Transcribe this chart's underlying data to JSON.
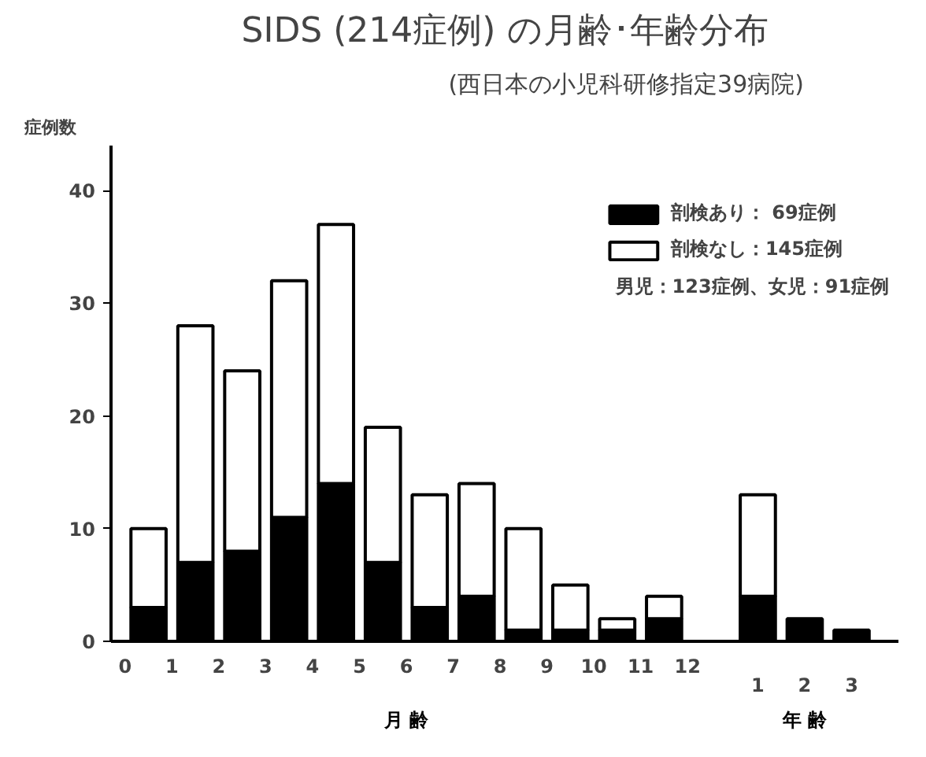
{
  "chart_data": {
    "type": "bar",
    "title": "SIDS (214症例) の月齢･年齢分布",
    "subtitle": "(西日本の小児科研修指定39病院)",
    "ylabel": "症例数",
    "xlabel": "月 齢",
    "annotations": [
      "年 齢",
      "男児：123症例、女児：91症例"
    ],
    "x": [
      0.5,
      1.5,
      2.5,
      3.5,
      4.5,
      5.5,
      6.5,
      7.5,
      8.5,
      9.5,
      10.5,
      11.5,
      13.5,
      14.5,
      15.5
    ],
    "stacked": true,
    "series": [
      {
        "name": "剖検あり： 69症例",
        "color": "#000000",
        "values": [
          3,
          7,
          8,
          11,
          14,
          7,
          3,
          4,
          1,
          1,
          1,
          2,
          4,
          2,
          1
        ]
      },
      {
        "name": "剖検なし：145症例",
        "color": "#ffffff",
        "values": [
          7,
          21,
          16,
          21,
          23,
          12,
          10,
          10,
          9,
          4,
          1,
          2,
          9,
          0,
          0
        ]
      }
    ],
    "xlim": [
      -0.3,
      16.5
    ],
    "ylim": [
      0,
      44
    ],
    "xticks": [
      0,
      1,
      2,
      3,
      4,
      5,
      6,
      7,
      8,
      9,
      10,
      11,
      12
    ],
    "x2lim": [
      -12.8,
      4.0
    ],
    "x2ticks": [
      1,
      2,
      3
    ],
    "yticks": [
      0,
      10,
      20,
      30,
      40
    ],
    "grid": false,
    "legend": "top right"
  }
}
